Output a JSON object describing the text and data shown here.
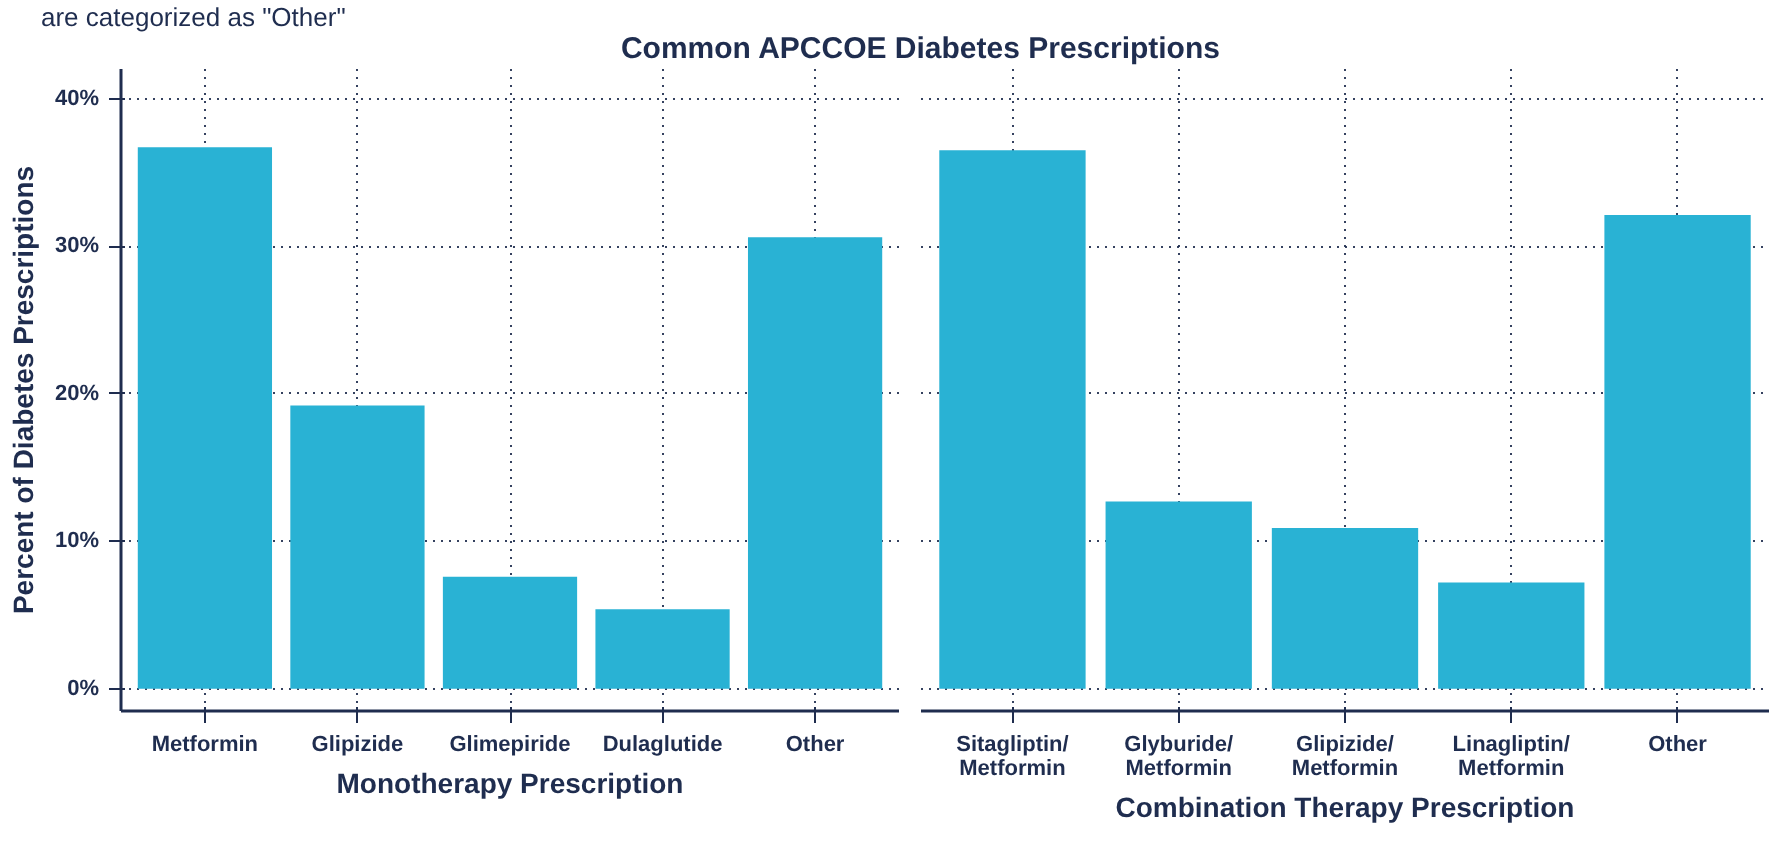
{
  "chart_data": [
    {
      "type": "bar",
      "title": "Common APCCOE Diabetes Prescriptions",
      "annotations": [
        "are categorized as \"Other\""
      ],
      "xlabel": "Monotherapy Prescription",
      "ylabel": "Percent of Diabetes Prescriptions",
      "categories": [
        "Metformin",
        "Glipizide",
        "Glimepiride",
        "Dulaglutide",
        "Other"
      ],
      "values": [
        36.7,
        19.2,
        7.6,
        5.4,
        30.6
      ],
      "color": "#29b2d4",
      "ylim": [
        -1.5,
        42
      ],
      "yticks": [
        {
          "value": 0,
          "label": "0%"
        },
        {
          "value": 10,
          "label": "10%"
        },
        {
          "value": 20,
          "label": "20%"
        },
        {
          "value": 30,
          "label": "30%"
        },
        {
          "value": 40,
          "label": "40%"
        }
      ],
      "grid": true
    },
    {
      "type": "bar",
      "xlabel": "Combination Therapy Prescription",
      "categories": [
        "Sitagliptin/Metformin",
        "Glyburide/Metformin",
        "Glipizide/Metformin",
        "Linagliptin/Metformin",
        "Other"
      ],
      "values": [
        36.5,
        12.7,
        10.9,
        7.2,
        32.1
      ],
      "color": "#29b2d4",
      "ylim": [
        -1.5,
        42
      ],
      "yticks": [
        {
          "value": 0,
          "label": null
        },
        {
          "value": 10,
          "label": null
        },
        {
          "value": 20,
          "label": null
        },
        {
          "value": 30,
          "label": null
        },
        {
          "value": 40,
          "label": null
        }
      ],
      "grid": true,
      "tick_labels": "x"
    }
  ]
}
